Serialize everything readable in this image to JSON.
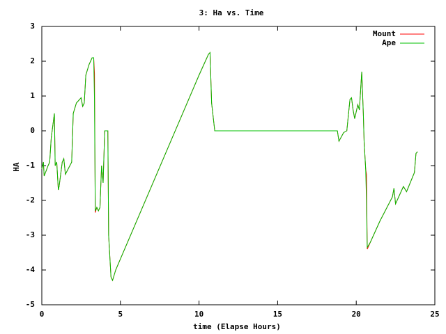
{
  "chart_data": {
    "type": "line",
    "title": "3: Ha vs. Time",
    "x_label": "time (Elapse Hours)",
    "y_label": "HA",
    "xlim": [
      0,
      25
    ],
    "xticks": [
      0,
      5,
      10,
      15,
      20,
      25
    ],
    "ylim": [
      -5,
      3
    ],
    "yticks": [
      -5,
      -4,
      -3,
      -2,
      -1,
      0,
      1,
      2,
      3
    ],
    "legend": "top-right",
    "series": [
      {
        "name": "Mount",
        "color": "#ff0000",
        "x": [
          0,
          0.1,
          0.15,
          0.4,
          0.5,
          0.6,
          0.8,
          0.85,
          0.95,
          1.05,
          1.1,
          1.3,
          1.4,
          1.5,
          1.9,
          2.0,
          2.2,
          2.5,
          2.6,
          2.7,
          2.8,
          3.0,
          3.2,
          3.3,
          3.35,
          3.4,
          3.5,
          3.6,
          3.7,
          3.8,
          3.9,
          4.0,
          4.2,
          4.25,
          4.4,
          4.5,
          4.7,
          10.0,
          10.6,
          10.7,
          10.8,
          11.0,
          18.8,
          18.9,
          19.2,
          19.4,
          19.6,
          19.7,
          19.8,
          19.9,
          20.1,
          20.2,
          20.35,
          20.45,
          20.5,
          20.6,
          20.65,
          20.7,
          20.9,
          21.5,
          22.3,
          22.4,
          22.5,
          23.0,
          23.2,
          23.7,
          23.8,
          23.9
        ],
        "values": [
          -1.1,
          -0.9,
          -1.3,
          -1.0,
          -0.9,
          -0.2,
          0.5,
          -1.0,
          -0.9,
          -1.7,
          -1.6,
          -0.9,
          -0.8,
          -1.25,
          -0.9,
          0.5,
          0.8,
          0.95,
          0.7,
          0.8,
          1.6,
          1.9,
          2.1,
          2.1,
          1.65,
          -2.35,
          -2.2,
          -2.3,
          -2.2,
          -1.0,
          -1.5,
          0.0,
          0.0,
          -3.0,
          -4.2,
          -4.3,
          -4.0,
          1.6,
          2.2,
          2.25,
          0.8,
          0.0,
          0.0,
          -0.3,
          -0.05,
          0.0,
          0.9,
          0.95,
          0.6,
          0.35,
          0.75,
          0.6,
          1.7,
          0.5,
          -0.3,
          -1.1,
          -1.25,
          -3.4,
          -3.2,
          -2.6,
          -1.9,
          -1.65,
          -2.1,
          -1.6,
          -1.75,
          -1.2,
          -0.65,
          -0.6
        ]
      },
      {
        "name": "Ape",
        "color": "#00c000",
        "x": [
          0,
          0.1,
          0.15,
          0.4,
          0.5,
          0.6,
          0.8,
          0.85,
          0.95,
          1.05,
          1.1,
          1.3,
          1.4,
          1.5,
          1.9,
          2.0,
          2.2,
          2.5,
          2.6,
          2.7,
          2.8,
          3.0,
          3.2,
          3.3,
          3.35,
          3.4,
          3.5,
          3.6,
          3.7,
          3.8,
          3.9,
          4.0,
          4.2,
          4.25,
          4.4,
          4.5,
          4.7,
          10.0,
          10.6,
          10.7,
          10.8,
          11.0,
          18.8,
          18.9,
          19.2,
          19.4,
          19.6,
          19.7,
          19.8,
          19.9,
          20.1,
          20.2,
          20.35,
          20.45,
          20.5,
          20.6,
          20.65,
          20.7,
          20.9,
          21.5,
          22.3,
          22.4,
          22.5,
          23.0,
          23.2,
          23.7,
          23.8,
          23.9
        ],
        "values": [
          -1.1,
          -0.9,
          -1.3,
          -1.0,
          -0.9,
          -0.2,
          0.5,
          -1.0,
          -0.9,
          -1.7,
          -1.6,
          -0.9,
          -0.8,
          -1.25,
          -0.9,
          0.5,
          0.8,
          0.95,
          0.7,
          0.8,
          1.6,
          1.9,
          2.1,
          2.1,
          0.9,
          -2.3,
          -2.2,
          -2.3,
          -2.2,
          -1.0,
          -1.5,
          0.0,
          0.0,
          -3.0,
          -4.2,
          -4.3,
          -4.0,
          1.6,
          2.2,
          2.25,
          0.8,
          0.0,
          0.0,
          -0.3,
          -0.05,
          0.0,
          0.9,
          0.95,
          0.6,
          0.35,
          0.75,
          0.6,
          1.7,
          0.5,
          -0.3,
          -1.1,
          -2.0,
          -3.35,
          -3.2,
          -2.6,
          -1.9,
          -1.65,
          -2.1,
          -1.6,
          -1.75,
          -1.2,
          -0.65,
          -0.6
        ]
      }
    ]
  }
}
